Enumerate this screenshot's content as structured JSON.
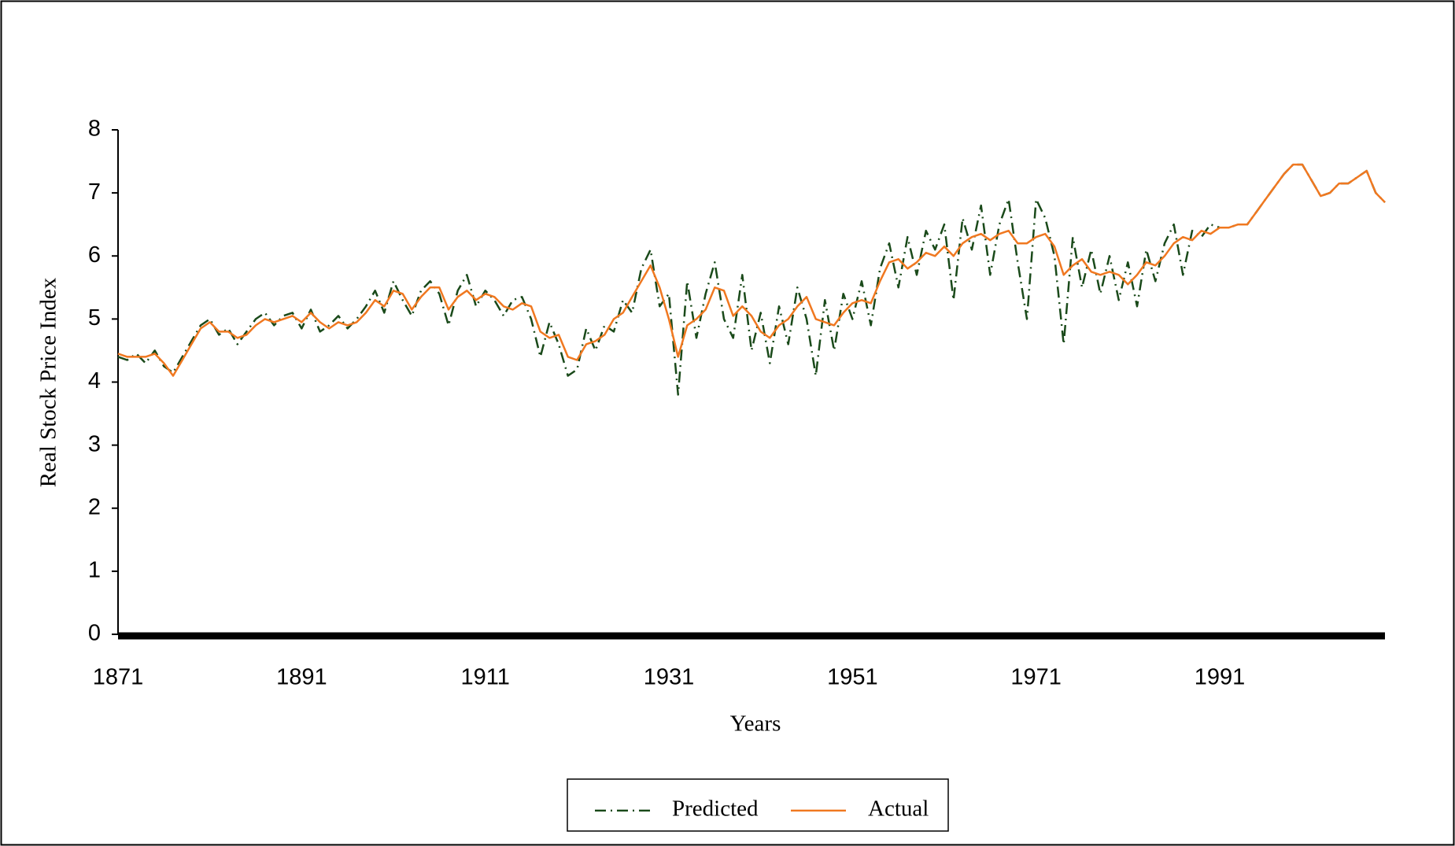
{
  "chart_data": {
    "type": "line",
    "xlabel": "Years",
    "ylabel": "Real Stock Price Index",
    "x": [
      1871,
      1872,
      1873,
      1874,
      1875,
      1876,
      1877,
      1878,
      1879,
      1880,
      1881,
      1882,
      1883,
      1884,
      1885,
      1886,
      1887,
      1888,
      1889,
      1890,
      1891,
      1892,
      1893,
      1894,
      1895,
      1896,
      1897,
      1898,
      1899,
      1900,
      1901,
      1902,
      1903,
      1904,
      1905,
      1906,
      1907,
      1908,
      1909,
      1910,
      1911,
      1912,
      1913,
      1914,
      1915,
      1916,
      1917,
      1918,
      1919,
      1920,
      1921,
      1922,
      1923,
      1924,
      1925,
      1926,
      1927,
      1928,
      1929,
      1930,
      1931,
      1932,
      1933,
      1934,
      1935,
      1936,
      1937,
      1938,
      1939,
      1940,
      1941,
      1942,
      1943,
      1944,
      1945,
      1946,
      1947,
      1948,
      1949,
      1950,
      1951,
      1952,
      1953,
      1954,
      1955,
      1956,
      1957,
      1958,
      1959,
      1960,
      1961,
      1962,
      1963,
      1964,
      1965,
      1966,
      1967,
      1968,
      1969,
      1970,
      1971,
      1972,
      1973,
      1974,
      1975,
      1976,
      1977,
      1978,
      1979,
      1980,
      1981,
      1982,
      1983,
      1984,
      1985,
      1986,
      1987,
      1988,
      1989,
      1990,
      1991,
      1992,
      1993,
      1994,
      1995,
      1996,
      1997,
      1998,
      1999,
      2000,
      2001,
      2002,
      2003,
      2004,
      2005,
      2006,
      2007,
      2008,
      2009
    ],
    "series": [
      {
        "name": "Predicted",
        "color": "#1a4a1a",
        "linestyle": "dashdot",
        "values": [
          4.4,
          4.35,
          4.45,
          4.3,
          4.5,
          4.25,
          4.15,
          4.4,
          4.65,
          4.9,
          5.0,
          4.75,
          4.85,
          4.6,
          4.8,
          5.0,
          5.1,
          4.9,
          5.05,
          5.1,
          4.85,
          5.15,
          4.8,
          4.9,
          5.05,
          4.85,
          5.0,
          5.2,
          5.45,
          5.1,
          5.6,
          5.3,
          5.05,
          5.45,
          5.6,
          5.4,
          4.9,
          5.45,
          5.7,
          5.2,
          5.45,
          5.3,
          5.05,
          5.3,
          5.35,
          5.0,
          4.4,
          4.95,
          4.6,
          4.1,
          4.2,
          4.85,
          4.5,
          4.9,
          4.8,
          5.3,
          5.1,
          5.8,
          6.1,
          5.2,
          5.4,
          3.8,
          5.6,
          4.7,
          5.4,
          5.9,
          5.0,
          4.7,
          5.7,
          4.5,
          5.1,
          4.3,
          5.2,
          4.6,
          5.5,
          5.0,
          4.1,
          5.3,
          4.5,
          5.4,
          5.0,
          5.6,
          4.9,
          5.8,
          6.2,
          5.5,
          6.3,
          5.7,
          6.4,
          6.1,
          6.5,
          5.3,
          6.6,
          6.1,
          6.8,
          5.7,
          6.5,
          6.9,
          5.9,
          5.0,
          6.9,
          6.6,
          6.0,
          4.6,
          6.3,
          5.5,
          6.1,
          5.4,
          6.0,
          5.3,
          5.9,
          5.2,
          6.1,
          5.6,
          6.2,
          6.5,
          5.7,
          6.4,
          6.3,
          6.5,
          6.45,
          6.45,
          6.5,
          6.5,
          6.7,
          6.9,
          7.1,
          7.3,
          7.45,
          7.45,
          7.2,
          6.95,
          7.0,
          7.15,
          7.15,
          7.25,
          7.35,
          7.0,
          6.85
        ]
      },
      {
        "name": "Actual",
        "color": "#f07820",
        "linestyle": "solid",
        "values": [
          4.45,
          4.4,
          4.4,
          4.4,
          4.45,
          4.3,
          4.1,
          4.35,
          4.6,
          4.85,
          4.95,
          4.8,
          4.8,
          4.7,
          4.75,
          4.9,
          5.0,
          4.95,
          5.0,
          5.05,
          4.95,
          5.1,
          4.95,
          4.85,
          4.95,
          4.9,
          4.95,
          5.1,
          5.3,
          5.2,
          5.45,
          5.4,
          5.15,
          5.35,
          5.5,
          5.5,
          5.15,
          5.35,
          5.45,
          5.3,
          5.4,
          5.35,
          5.2,
          5.15,
          5.25,
          5.2,
          4.8,
          4.7,
          4.75,
          4.4,
          4.35,
          4.6,
          4.65,
          4.75,
          5.0,
          5.1,
          5.35,
          5.6,
          5.85,
          5.5,
          5.0,
          4.4,
          4.9,
          5.0,
          5.15,
          5.5,
          5.45,
          5.05,
          5.2,
          5.05,
          4.8,
          4.7,
          4.9,
          5.0,
          5.2,
          5.35,
          5.0,
          4.95,
          4.9,
          5.1,
          5.25,
          5.3,
          5.25,
          5.6,
          5.9,
          5.95,
          5.8,
          5.9,
          6.05,
          6.0,
          6.15,
          6.0,
          6.2,
          6.3,
          6.35,
          6.25,
          6.35,
          6.4,
          6.2,
          6.2,
          6.3,
          6.35,
          6.15,
          5.7,
          5.85,
          5.95,
          5.75,
          5.7,
          5.75,
          5.7,
          5.55,
          5.7,
          5.9,
          5.85,
          6.0,
          6.2,
          6.3,
          6.25,
          6.4,
          6.35,
          6.45,
          6.45,
          6.5,
          6.5,
          6.7,
          6.9,
          7.1,
          7.3,
          7.45,
          7.45,
          7.2,
          6.95,
          7.0,
          7.15,
          7.15,
          7.25,
          7.35,
          7.0,
          6.85
        ]
      }
    ],
    "xlim": [
      1871,
      2009
    ],
    "xticks": [
      1871,
      1891,
      1911,
      1931,
      1951,
      1971,
      1991
    ],
    "ylim": [
      0,
      8
    ],
    "yticks": [
      0,
      1,
      2,
      3,
      4,
      5,
      6,
      7,
      8
    ],
    "grid": false,
    "legend": "bottom"
  }
}
